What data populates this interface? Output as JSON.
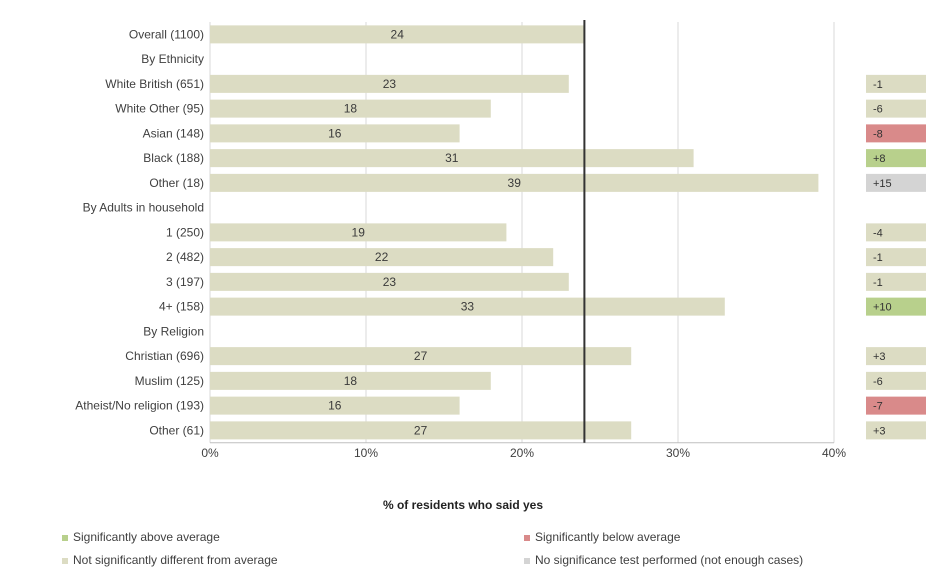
{
  "chart_data": {
    "type": "bar",
    "orientation": "horizontal",
    "xlabel": "% of residents who said yes",
    "xlim": [
      0,
      40
    ],
    "xticks": [
      "0%",
      "10%",
      "20%",
      "30%",
      "40%"
    ],
    "average": 24,
    "rows": [
      {
        "label": "Overall (1100)",
        "value": 24,
        "diff": null,
        "status": "overall"
      },
      {
        "label": "By Ethnicity",
        "value": null,
        "diff": null,
        "status": "header"
      },
      {
        "label": "White British (651)",
        "value": 23,
        "diff": "-1",
        "status": "not_significant"
      },
      {
        "label": "White Other (95)",
        "value": 18,
        "diff": "-6",
        "status": "not_significant"
      },
      {
        "label": "Asian (148)",
        "value": 16,
        "diff": "-8",
        "status": "below"
      },
      {
        "label": "Black (188)",
        "value": 31,
        "diff": "+8",
        "status": "above"
      },
      {
        "label": "Other (18)",
        "value": 39,
        "diff": "+15",
        "status": "not_tested"
      },
      {
        "label": "By Adults in household",
        "value": null,
        "diff": null,
        "status": "header"
      },
      {
        "label": "1 (250)",
        "value": 19,
        "diff": "-4",
        "status": "not_significant"
      },
      {
        "label": "2 (482)",
        "value": 22,
        "diff": "-1",
        "status": "not_significant"
      },
      {
        "label": "3 (197)",
        "value": 23,
        "diff": "-1",
        "status": "not_significant"
      },
      {
        "label": "4+ (158)",
        "value": 33,
        "diff": "+10",
        "status": "above"
      },
      {
        "label": "By Religion",
        "value": null,
        "diff": null,
        "status": "header"
      },
      {
        "label": "Christian (696)",
        "value": 27,
        "diff": "+3",
        "status": "not_significant"
      },
      {
        "label": "Muslim (125)",
        "value": 18,
        "diff": "-6",
        "status": "not_significant"
      },
      {
        "label": "Atheist/No religion (193)",
        "value": 16,
        "diff": "-7",
        "status": "below"
      },
      {
        "label": "Other (61)",
        "value": 27,
        "diff": "+3",
        "status": "not_significant"
      }
    ],
    "legend": [
      {
        "key": "above",
        "text": "Significantly above average"
      },
      {
        "key": "below",
        "text": "Significantly below average"
      },
      {
        "key": "not_significant",
        "text": "Not significantly different from average"
      },
      {
        "key": "not_tested",
        "text": "No significance test performed (not enough cases)"
      }
    ],
    "colors": {
      "bar": "#dcdcc3",
      "overall": "#dcdcc3",
      "above": "#b8d08c",
      "below": "#d98a8a",
      "not_significant": "#dcdcc3",
      "not_tested": "#d4d4d4",
      "average_line": "#333333",
      "grid": "#d9d9d9"
    }
  }
}
